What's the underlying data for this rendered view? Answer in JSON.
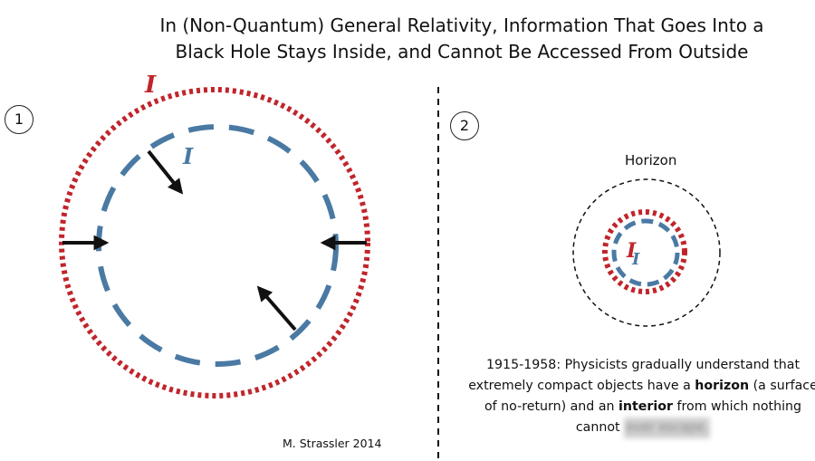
{
  "title": {
    "line1": "In (Non-Quantum) General Relativity, Information That Goes Into a",
    "line2": "Black Hole Stays Inside, and Cannot Be Accessed From Outside"
  },
  "panels": {
    "panel1": {
      "number": "1"
    },
    "panel2": {
      "number": "2"
    }
  },
  "labels": {
    "info_symbol": "I",
    "horizon": "Horizon"
  },
  "caption": {
    "part1": "1915-1958:  Physicists gradually understand that extremely compact objects have a ",
    "bold1": "horizon",
    "part2": " (a surface of no-return) and an ",
    "bold2": "interior",
    "part3": " from which nothing cannot ",
    "redacted": "ever escape."
  },
  "credit": "M. Strassler 2014",
  "colors": {
    "red": "#c0252b",
    "blue": "#4a7aa3",
    "black": "#111111"
  }
}
